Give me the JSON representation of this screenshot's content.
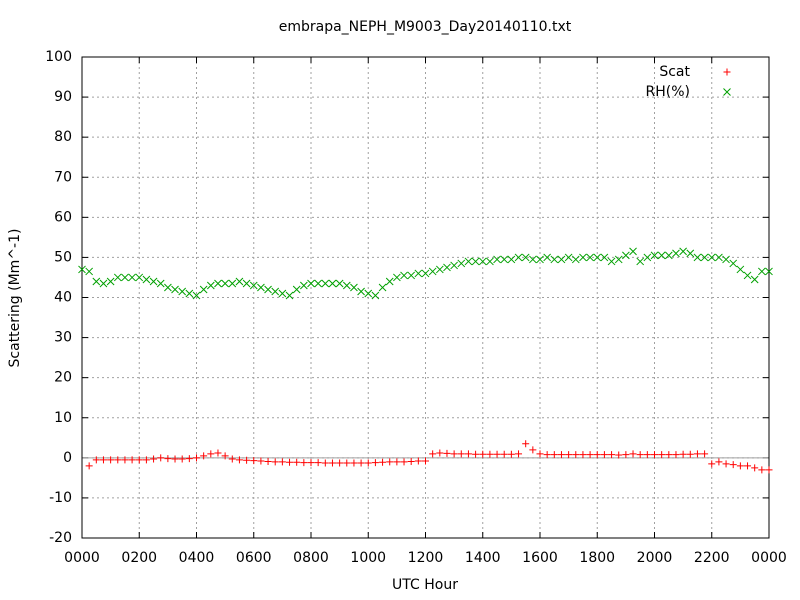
{
  "chart_data": {
    "type": "scatter",
    "title": "embrapa_NEPH_M9003_Day20140110.txt",
    "x_label": "UTC Hour",
    "y_label": "Scattering (Mm^-1)",
    "xlim": [
      0,
      24
    ],
    "xticks": [
      {
        "value": 0,
        "label": "0000"
      },
      {
        "value": 2,
        "label": "0200"
      },
      {
        "value": 4,
        "label": "0400"
      },
      {
        "value": 6,
        "label": "0600"
      },
      {
        "value": 8,
        "label": "0800"
      },
      {
        "value": 10,
        "label": "1000"
      },
      {
        "value": 12,
        "label": "1200"
      },
      {
        "value": 14,
        "label": "1400"
      },
      {
        "value": 16,
        "label": "1600"
      },
      {
        "value": 18,
        "label": "1800"
      },
      {
        "value": 20,
        "label": "2000"
      },
      {
        "value": 22,
        "label": "2200"
      },
      {
        "value": 24,
        "label": "0000"
      }
    ],
    "ylim": [
      -20,
      100
    ],
    "yticks": [
      -20,
      -10,
      0,
      10,
      20,
      30,
      40,
      50,
      60,
      70,
      80,
      90,
      100
    ],
    "grid": true,
    "legend": "top-right",
    "x": [
      0,
      0.25,
      0.5,
      0.75,
      1,
      1.25,
      1.5,
      1.75,
      2,
      2.25,
      2.5,
      2.75,
      3,
      3.25,
      3.5,
      3.75,
      4,
      4.25,
      4.5,
      4.75,
      5,
      5.25,
      5.5,
      5.75,
      6,
      6.25,
      6.5,
      6.75,
      7,
      7.25,
      7.5,
      7.75,
      8,
      8.25,
      8.5,
      8.75,
      9,
      9.25,
      9.5,
      9.75,
      10,
      10.25,
      10.5,
      10.75,
      11,
      11.25,
      11.5,
      11.75,
      12,
      12.25,
      12.5,
      12.75,
      13,
      13.25,
      13.5,
      13.75,
      14,
      14.25,
      14.5,
      14.75,
      15,
      15.25,
      15.5,
      15.75,
      16,
      16.25,
      16.5,
      16.75,
      17,
      17.25,
      17.5,
      17.75,
      18,
      18.25,
      18.5,
      18.75,
      19,
      19.25,
      19.5,
      19.75,
      20,
      20.25,
      20.5,
      20.75,
      21,
      21.25,
      21.5,
      21.75,
      22,
      22.25,
      22.5,
      22.75,
      23,
      23.25,
      23.5,
      23.75,
      24
    ],
    "series": [
      {
        "name": "Scat",
        "color": "#ff0000",
        "marker": "plus",
        "values": [
          null,
          -2,
          -0.5,
          -0.5,
          -0.5,
          -0.5,
          -0.5,
          -0.5,
          -0.5,
          -0.5,
          -0.3,
          0,
          -0.2,
          -0.3,
          -0.3,
          -0.2,
          0,
          0.5,
          1,
          1.2,
          0.5,
          -0.3,
          -0.5,
          -0.6,
          -0.7,
          -0.8,
          -0.9,
          -1,
          -1,
          -1.1,
          -1.1,
          -1.2,
          -1.2,
          -1.2,
          -1.3,
          -1.3,
          -1.3,
          -1.3,
          -1.3,
          -1.3,
          -1.3,
          -1.2,
          -1.1,
          -1,
          -1,
          -1,
          -0.9,
          -0.8,
          -0.8,
          1,
          1.2,
          1.1,
          1,
          1,
          1,
          0.9,
          0.9,
          0.9,
          0.9,
          0.9,
          0.9,
          1,
          3.5,
          2,
          1,
          0.8,
          0.8,
          0.8,
          0.8,
          0.8,
          0.8,
          0.8,
          0.8,
          0.8,
          0.8,
          0.7,
          0.8,
          1,
          0.8,
          0.8,
          0.8,
          0.8,
          0.8,
          0.8,
          0.9,
          0.9,
          1,
          1,
          -1.5,
          -1,
          -1.5,
          -1.7,
          -2,
          -2,
          -2.5,
          -3,
          -3
        ]
      },
      {
        "name": "RH(%)",
        "color": "#00a000",
        "marker": "cross",
        "values": [
          47,
          46.5,
          44,
          43.5,
          44,
          45,
          45,
          45,
          45,
          44.5,
          44,
          43.5,
          42.5,
          42,
          41.5,
          41,
          40.5,
          42,
          43,
          43.5,
          43.5,
          43.5,
          44,
          43.5,
          43,
          42.5,
          42,
          41.5,
          41,
          40.5,
          42,
          43,
          43.5,
          43.5,
          43.5,
          43.5,
          43.5,
          43,
          42.5,
          41.5,
          41,
          40.5,
          42.5,
          44,
          45,
          45.5,
          45.5,
          46,
          46,
          46.5,
          47,
          47.5,
          48,
          48.5,
          49,
          49,
          49,
          49,
          49.5,
          49.5,
          49.5,
          50,
          50,
          49.5,
          49.5,
          50,
          49.5,
          49.5,
          50,
          49.5,
          50,
          50,
          50,
          50,
          49,
          49.5,
          50.5,
          51.5,
          49,
          50,
          50.5,
          50.5,
          50.5,
          51,
          51.5,
          51,
          50,
          50,
          50,
          50,
          49.5,
          48.5,
          47,
          45.5,
          44.5,
          46.5,
          46.5
        ]
      }
    ]
  }
}
